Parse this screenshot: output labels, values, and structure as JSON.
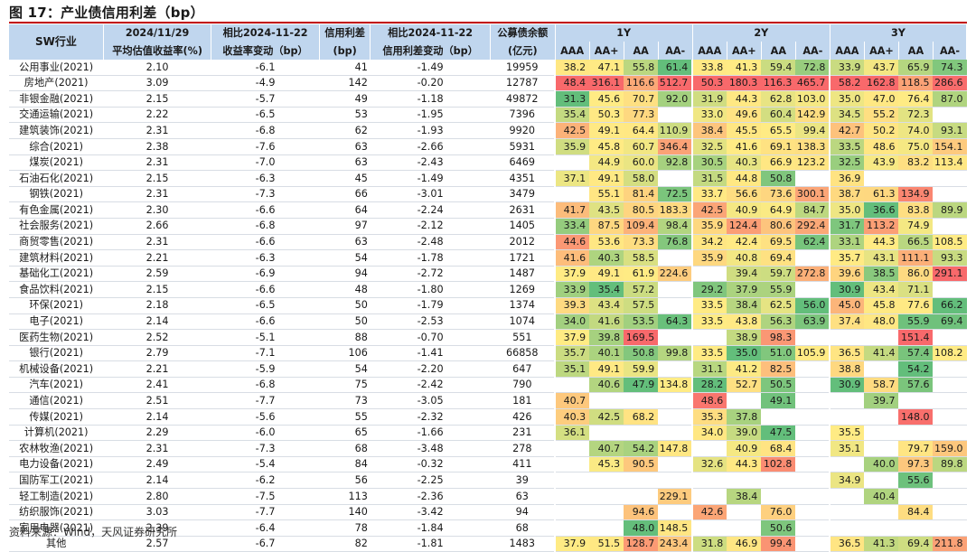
{
  "title": "图 17：产业债信用利差（bp）",
  "source": "资料来源：Wind，天风证券研究所",
  "header": {
    "industry": "SW行业",
    "yield_h1": "2024/11/29",
    "yield_h2": "平均估值收益率(%)",
    "chg_h1": "相比2024-11-22",
    "chg_h2": "收益率变动（bp）",
    "spread_h1": "信用利差",
    "spread_h2": "(bp)",
    "spchg_h1": "相比2024-11-22",
    "spchg_h2": "信用利差变动（bp）",
    "amt_h1": "公募债余额",
    "amt_h2": "(亿元)",
    "tenors": [
      "1Y",
      "2Y",
      "3Y"
    ],
    "ratings": [
      "AAA",
      "AA+",
      "AA",
      "AA-"
    ]
  },
  "colors": {
    "header_bg": "#c0d6ee",
    "rule": "#c00000",
    "scale_low": "#63be7b",
    "scale_mid": "#ffeb84",
    "scale_high": "#f8696b"
  },
  "rows": [
    {
      "ind": "公用事业(2021)",
      "yld": "2.10",
      "ychg": "-6.1",
      "sp": "41",
      "spchg": "-1.49",
      "amt": "19959",
      "v": [
        "38.2",
        "47.1",
        "55.8",
        "61.4",
        "33.8",
        "41.3",
        "59.4",
        "72.8",
        "33.9",
        "43.7",
        "65.9",
        "74.3"
      ]
    },
    {
      "ind": "房地产(2021)",
      "yld": "3.09",
      "ychg": "-4.9",
      "sp": "142",
      "spchg": "-0.20",
      "amt": "12787",
      "v": [
        "48.4",
        "316.1",
        "116.6",
        "512.7",
        "50.3",
        "180.3",
        "116.3",
        "465.7",
        "58.2",
        "162.8",
        "118.5",
        "286.6"
      ]
    },
    {
      "ind": "非银金融(2021)",
      "yld": "2.15",
      "ychg": "-5.7",
      "sp": "49",
      "spchg": "-1.18",
      "amt": "49872",
      "v": [
        "31.3",
        "45.6",
        "70.7",
        "92.0",
        "31.9",
        "44.3",
        "62.8",
        "103.0",
        "35.0",
        "47.0",
        "76.4",
        "87.0"
      ]
    },
    {
      "ind": "交通运输(2021)",
      "yld": "2.22",
      "ychg": "-6.5",
      "sp": "53",
      "spchg": "-1.95",
      "amt": "7396",
      "v": [
        "35.4",
        "50.3",
        "77.3",
        "",
        "33.0",
        "49.6",
        "60.4",
        "142.9",
        "34.5",
        "55.2",
        "72.3",
        ""
      ]
    },
    {
      "ind": "建筑装饰(2021)",
      "yld": "2.31",
      "ychg": "-6.8",
      "sp": "62",
      "spchg": "-1.93",
      "amt": "9920",
      "v": [
        "42.5",
        "49.1",
        "64.4",
        "110.9",
        "38.4",
        "45.5",
        "65.5",
        "99.4",
        "42.7",
        "50.2",
        "74.0",
        "93.1"
      ]
    },
    {
      "ind": "综合(2021)",
      "yld": "2.38",
      "ychg": "-7.6",
      "sp": "63",
      "spchg": "-2.66",
      "amt": "5931",
      "v": [
        "35.9",
        "45.8",
        "60.7",
        "346.4",
        "32.5",
        "41.6",
        "69.1",
        "138.3",
        "33.5",
        "48.6",
        "75.0",
        "154.1"
      ]
    },
    {
      "ind": "煤炭(2021)",
      "yld": "2.31",
      "ychg": "-7.0",
      "sp": "63",
      "spchg": "-2.43",
      "amt": "6469",
      "v": [
        "",
        "44.9",
        "60.0",
        "92.8",
        "30.5",
        "40.3",
        "66.9",
        "123.2",
        "32.5",
        "43.9",
        "83.2",
        "113.4"
      ]
    },
    {
      "ind": "石油石化(2021)",
      "yld": "2.15",
      "ychg": "-6.3",
      "sp": "45",
      "spchg": "-1.49",
      "amt": "4351",
      "v": [
        "37.1",
        "49.1",
        "58.0",
        "",
        "31.5",
        "44.8",
        "50.8",
        "",
        "36.9",
        "",
        "",
        ""
      ]
    },
    {
      "ind": "钢铁(2021)",
      "yld": "2.31",
      "ychg": "-7.3",
      "sp": "66",
      "spchg": "-3.01",
      "amt": "3479",
      "v": [
        "",
        "55.1",
        "81.4",
        "72.5",
        "33.7",
        "56.6",
        "73.6",
        "300.1",
        "38.7",
        "61.3",
        "134.9",
        ""
      ]
    },
    {
      "ind": "有色金属(2021)",
      "yld": "2.30",
      "ychg": "-6.6",
      "sp": "64",
      "spchg": "-2.24",
      "amt": "2631",
      "v": [
        "41.7",
        "43.5",
        "80.5",
        "183.3",
        "42.5",
        "40.9",
        "64.9",
        "84.7",
        "35.0",
        "36.6",
        "83.8",
        "89.9"
      ]
    },
    {
      "ind": "社会服务(2021)",
      "yld": "2.66",
      "ychg": "-6.8",
      "sp": "97",
      "spchg": "-2.12",
      "amt": "1405",
      "v": [
        "33.4",
        "87.5",
        "109.4",
        "98.4",
        "35.9",
        "124.4",
        "80.6",
        "292.4",
        "31.7",
        "113.2",
        "74.9",
        ""
      ]
    },
    {
      "ind": "商贸零售(2021)",
      "yld": "2.31",
      "ychg": "-6.6",
      "sp": "63",
      "spchg": "-2.48",
      "amt": "2012",
      "v": [
        "44.6",
        "53.6",
        "73.3",
        "76.8",
        "34.2",
        "42.4",
        "69.5",
        "62.4",
        "33.1",
        "44.3",
        "66.5",
        "108.5"
      ]
    },
    {
      "ind": "建筑材料(2021)",
      "yld": "2.21",
      "ychg": "-6.3",
      "sp": "54",
      "spchg": "-1.78",
      "amt": "1721",
      "v": [
        "41.6",
        "40.3",
        "58.5",
        "",
        "35.9",
        "40.8",
        "69.4",
        "",
        "35.7",
        "43.1",
        "111.1",
        "93.3"
      ]
    },
    {
      "ind": "基础化工(2021)",
      "yld": "2.59",
      "ychg": "-6.9",
      "sp": "94",
      "spchg": "-2.72",
      "amt": "1487",
      "v": [
        "37.9",
        "49.1",
        "61.9",
        "224.6",
        "",
        "39.4",
        "59.7",
        "272.8",
        "39.6",
        "38.5",
        "86.0",
        "291.1"
      ]
    },
    {
      "ind": "食品饮料(2021)",
      "yld": "2.15",
      "ychg": "-6.6",
      "sp": "48",
      "spchg": "-1.80",
      "amt": "1269",
      "v": [
        "33.9",
        "35.4",
        "57.2",
        "",
        "29.2",
        "37.9",
        "55.9",
        "",
        "30.9",
        "43.4",
        "71.1",
        ""
      ]
    },
    {
      "ind": "环保(2021)",
      "yld": "2.18",
      "ychg": "-6.5",
      "sp": "50",
      "spchg": "-1.79",
      "amt": "1374",
      "v": [
        "39.3",
        "43.4",
        "57.5",
        "",
        "33.5",
        "38.4",
        "62.5",
        "56.0",
        "45.0",
        "45.8",
        "77.6",
        "66.2"
      ]
    },
    {
      "ind": "电子(2021)",
      "yld": "2.14",
      "ychg": "-6.6",
      "sp": "50",
      "spchg": "-2.53",
      "amt": "1074",
      "v": [
        "34.0",
        "41.6",
        "53.5",
        "64.3",
        "33.5",
        "43.8",
        "56.3",
        "63.9",
        "37.4",
        "48.0",
        "55.9",
        "69.4"
      ]
    },
    {
      "ind": "医药生物(2021)",
      "yld": "2.52",
      "ychg": "-5.1",
      "sp": "88",
      "spchg": "-0.70",
      "amt": "551",
      "v": [
        "37.9",
        "39.8",
        "169.5",
        "",
        "",
        "38.9",
        "98.3",
        "",
        "",
        "",
        "151.4",
        ""
      ]
    },
    {
      "ind": "银行(2021)",
      "yld": "2.79",
      "ychg": "-7.1",
      "sp": "106",
      "spchg": "-1.41",
      "amt": "66858",
      "v": [
        "35.7",
        "40.1",
        "50.8",
        "99.8",
        "33.5",
        "35.0",
        "51.0",
        "105.9",
        "36.5",
        "41.4",
        "57.4",
        "108.2"
      ]
    },
    {
      "ind": "机械设备(2021)",
      "yld": "2.21",
      "ychg": "-5.9",
      "sp": "54",
      "spchg": "-2.20",
      "amt": "647",
      "v": [
        "35.1",
        "49.1",
        "59.9",
        "",
        "31.1",
        "41.2",
        "82.5",
        "",
        "38.8",
        "",
        "54.2",
        ""
      ]
    },
    {
      "ind": "汽车(2021)",
      "yld": "2.41",
      "ychg": "-6.8",
      "sp": "75",
      "spchg": "-2.42",
      "amt": "790",
      "v": [
        "",
        "40.6",
        "47.9",
        "134.8",
        "28.2",
        "52.7",
        "50.5",
        "",
        "30.9",
        "58.7",
        "57.6",
        ""
      ]
    },
    {
      "ind": "通信(2021)",
      "yld": "2.51",
      "ychg": "-7.7",
      "sp": "73",
      "spchg": "-3.05",
      "amt": "181",
      "v": [
        "40.7",
        "",
        "",
        "",
        "48.6",
        "",
        "49.1",
        "",
        "",
        "39.7",
        "",
        ""
      ]
    },
    {
      "ind": "传媒(2021)",
      "yld": "2.14",
      "ychg": "-5.6",
      "sp": "55",
      "spchg": "-2.32",
      "amt": "426",
      "v": [
        "40.3",
        "42.5",
        "68.2",
        "",
        "35.3",
        "37.8",
        "",
        "",
        "",
        "",
        "148.0",
        ""
      ]
    },
    {
      "ind": "计算机(2021)",
      "yld": "2.29",
      "ychg": "-6.0",
      "sp": "65",
      "spchg": "-1.66",
      "amt": "231",
      "v": [
        "36.1",
        "",
        "",
        "",
        "34.0",
        "39.0",
        "47.5",
        "",
        "35.5",
        "",
        "",
        ""
      ]
    },
    {
      "ind": "农林牧渔(2021)",
      "yld": "2.31",
      "ychg": "-7.3",
      "sp": "68",
      "spchg": "-3.48",
      "amt": "278",
      "v": [
        "",
        "40.7",
        "54.2",
        "147.8",
        "",
        "40.9",
        "68.4",
        "",
        "35.1",
        "",
        "79.7",
        "159.0"
      ]
    },
    {
      "ind": "电力设备(2021)",
      "yld": "2.49",
      "ychg": "-5.4",
      "sp": "84",
      "spchg": "-0.32",
      "amt": "411",
      "v": [
        "",
        "45.3",
        "90.5",
        "",
        "32.6",
        "44.3",
        "102.8",
        "",
        "",
        "40.0",
        "97.3",
        "89.8"
      ]
    },
    {
      "ind": "国防军工(2021)",
      "yld": "2.14",
      "ychg": "-6.2",
      "sp": "56",
      "spchg": "-2.25",
      "amt": "39",
      "v": [
        "",
        "",
        "",
        "",
        "",
        "",
        "",
        "",
        "34.9",
        "",
        "55.6",
        ""
      ]
    },
    {
      "ind": "轻工制造(2021)",
      "yld": "2.80",
      "ychg": "-7.5",
      "sp": "113",
      "spchg": "-2.36",
      "amt": "63",
      "v": [
        "",
        "",
        "",
        "229.1",
        "",
        "38.4",
        "",
        "",
        "",
        "40.4",
        "",
        ""
      ]
    },
    {
      "ind": "纺织服饰(2021)",
      "yld": "3.03",
      "ychg": "-7.7",
      "sp": "140",
      "spchg": "-3.42",
      "amt": "94",
      "v": [
        "",
        "",
        "94.6",
        "",
        "42.6",
        "",
        "76.0",
        "",
        "",
        "",
        "84.4",
        ""
      ]
    },
    {
      "ind": "家用电器(2021)",
      "yld": "2.39",
      "ychg": "-6.4",
      "sp": "78",
      "spchg": "-1.84",
      "amt": "68",
      "v": [
        "",
        "",
        "48.0",
        "148.5",
        "",
        "",
        "50.6",
        "",
        "",
        "",
        "",
        ""
      ]
    },
    {
      "ind": "其他",
      "yld": "2.57",
      "ychg": "-6.7",
      "sp": "82",
      "spchg": "-1.81",
      "amt": "1483",
      "v": [
        "37.9",
        "51.5",
        "128.7",
        "243.4",
        "31.8",
        "46.9",
        "99.4",
        "",
        "36.5",
        "41.3",
        "69.4",
        "211.8"
      ]
    }
  ]
}
